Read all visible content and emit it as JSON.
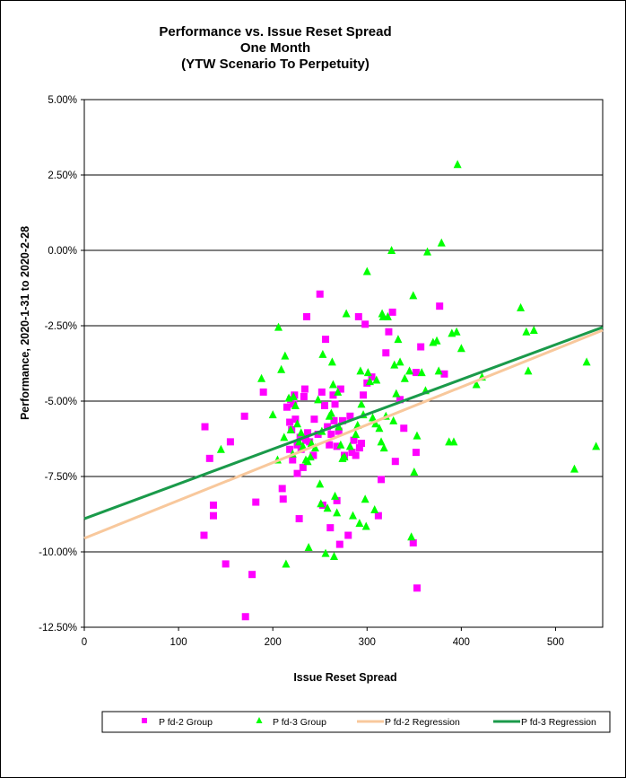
{
  "chart_data": {
    "type": "scatter",
    "title_lines": [
      "Performance vs. Issue Reset Spread",
      "One Month",
      "(YTW Scenario To Perpetuity)"
    ],
    "xlabel": "Issue  Reset Spread",
    "ylabel": "Performance, 2020-1-31  to  2020-2-28",
    "xlim": [
      0,
      550
    ],
    "ylim": [
      -12.5,
      5.0
    ],
    "x_ticks": [
      0,
      100,
      200,
      300,
      400,
      500
    ],
    "x_tick_labels": [
      "0",
      "100",
      "200",
      "300",
      "400",
      "500"
    ],
    "y_ticks": [
      5.0,
      2.5,
      0.0,
      -2.5,
      -5.0,
      -7.5,
      -10.0,
      -12.5
    ],
    "y_tick_labels": [
      "5.00%",
      "2.50%",
      "0.00%",
      "-2.50%",
      "-5.00%",
      "-7.50%",
      "-10.00%",
      "-12.50%"
    ],
    "gridlines": "horizontal",
    "legend_position": "bottom",
    "series": [
      {
        "name": "P fd-2 Group",
        "marker": "square",
        "color": "#ff00ff",
        "points": [
          [
            128,
            -5.85
          ],
          [
            133,
            -6.9
          ],
          [
            137,
            -8.45
          ],
          [
            137,
            -8.8
          ],
          [
            127,
            -9.45
          ],
          [
            150,
            -10.4
          ],
          [
            155,
            -6.35
          ],
          [
            170,
            -5.5
          ],
          [
            171,
            -12.15
          ],
          [
            178,
            -10.75
          ],
          [
            182,
            -8.35
          ],
          [
            190,
            -4.7
          ],
          [
            210,
            -7.9
          ],
          [
            211,
            -8.25
          ],
          [
            215,
            -5.2
          ],
          [
            218,
            -6.6
          ],
          [
            218,
            -5.7
          ],
          [
            219,
            -4.95
          ],
          [
            220,
            -5.95
          ],
          [
            221,
            -6.95
          ],
          [
            222,
            -5.1
          ],
          [
            223,
            -4.8
          ],
          [
            224,
            -5.6
          ],
          [
            226,
            -6.45
          ],
          [
            226,
            -7.4
          ],
          [
            228,
            -8.9
          ],
          [
            229,
            -6.2
          ],
          [
            230,
            -6.6
          ],
          [
            232,
            -7.2
          ],
          [
            233,
            -4.85
          ],
          [
            234,
            -4.6
          ],
          [
            235,
            -6.3
          ],
          [
            236,
            -2.2
          ],
          [
            237,
            -6.05
          ],
          [
            239,
            -6.35
          ],
          [
            243,
            -6.8
          ],
          [
            244,
            -5.6
          ],
          [
            248,
            -6.1
          ],
          [
            250,
            -1.45
          ],
          [
            252,
            -4.7
          ],
          [
            253,
            -8.45
          ],
          [
            255,
            -5.15
          ],
          [
            256,
            -2.95
          ],
          [
            258,
            -5.85
          ],
          [
            260,
            -6.45
          ],
          [
            261,
            -9.2
          ],
          [
            262,
            -6.1
          ],
          [
            264,
            -4.8
          ],
          [
            265,
            -5.65
          ],
          [
            266,
            -5.1
          ],
          [
            268,
            -8.3
          ],
          [
            268,
            -6.5
          ],
          [
            270,
            -6.0
          ],
          [
            271,
            -9.75
          ],
          [
            272,
            -4.6
          ],
          [
            274,
            -5.65
          ],
          [
            276,
            -6.8
          ],
          [
            280,
            -9.45
          ],
          [
            282,
            -5.5
          ],
          [
            284,
            -6.7
          ],
          [
            286,
            -6.3
          ],
          [
            288,
            -6.8
          ],
          [
            291,
            -2.2
          ],
          [
            292,
            -6.55
          ],
          [
            294,
            -6.4
          ],
          [
            296,
            -4.8
          ],
          [
            298,
            -2.45
          ],
          [
            300,
            -4.4
          ],
          [
            305,
            -4.2
          ],
          [
            312,
            -8.8
          ],
          [
            315,
            -7.6
          ],
          [
            320,
            -3.4
          ],
          [
            323,
            -2.7
          ],
          [
            327,
            -2.05
          ],
          [
            330,
            -7.0
          ],
          [
            335,
            -4.95
          ],
          [
            339,
            -5.9
          ],
          [
            349,
            -9.7
          ],
          [
            352,
            -6.7
          ],
          [
            353,
            -11.2
          ],
          [
            352,
            -4.05
          ],
          [
            357,
            -3.2
          ],
          [
            377,
            -1.85
          ],
          [
            382,
            -4.1
          ]
        ]
      },
      {
        "name": "P fd-3 Group",
        "marker": "triangle",
        "color": "#00ff00",
        "points": [
          [
            145,
            -6.6
          ],
          [
            188,
            -4.25
          ],
          [
            200,
            -5.45
          ],
          [
            205,
            -6.95
          ],
          [
            206,
            -2.55
          ],
          [
            209,
            -3.95
          ],
          [
            212,
            -6.2
          ],
          [
            213,
            -3.5
          ],
          [
            214,
            -10.4
          ],
          [
            217,
            -4.9
          ],
          [
            219,
            -5.95
          ],
          [
            221,
            -6.75
          ],
          [
            222,
            -4.85
          ],
          [
            224,
            -5.15
          ],
          [
            226,
            -5.75
          ],
          [
            228,
            -6.35
          ],
          [
            230,
            -6.05
          ],
          [
            232,
            -6.5
          ],
          [
            235,
            -6.95
          ],
          [
            237,
            -7.0
          ],
          [
            238,
            -9.85
          ],
          [
            240,
            -6.85
          ],
          [
            241,
            -6.4
          ],
          [
            245,
            -6.55
          ],
          [
            248,
            -4.95
          ],
          [
            250,
            -7.75
          ],
          [
            251,
            -8.4
          ],
          [
            252,
            -6.0
          ],
          [
            253,
            -3.45
          ],
          [
            256,
            -10.05
          ],
          [
            258,
            -8.55
          ],
          [
            260,
            -5.5
          ],
          [
            262,
            -5.4
          ],
          [
            263,
            -3.7
          ],
          [
            264,
            -4.45
          ],
          [
            265,
            -10.15
          ],
          [
            266,
            -8.15
          ],
          [
            268,
            -8.7
          ],
          [
            269,
            -4.7
          ],
          [
            270,
            -5.85
          ],
          [
            272,
            -6.45
          ],
          [
            274,
            -6.9
          ],
          [
            276,
            -6.85
          ],
          [
            278,
            -2.1
          ],
          [
            282,
            -6.5
          ],
          [
            285,
            -8.8
          ],
          [
            288,
            -6.1
          ],
          [
            290,
            -5.8
          ],
          [
            292,
            -9.05
          ],
          [
            293,
            -4.0
          ],
          [
            294,
            -5.1
          ],
          [
            296,
            -5.45
          ],
          [
            298,
            -8.25
          ],
          [
            299,
            -9.15
          ],
          [
            300,
            -0.7
          ],
          [
            301,
            -4.05
          ],
          [
            303,
            -4.35
          ],
          [
            306,
            -5.55
          ],
          [
            308,
            -8.6
          ],
          [
            309,
            -5.75
          ],
          [
            310,
            -4.3
          ],
          [
            313,
            -5.9
          ],
          [
            315,
            -6.35
          ],
          [
            316,
            -2.1
          ],
          [
            317,
            -2.2
          ],
          [
            318,
            -6.55
          ],
          [
            320,
            -5.5
          ],
          [
            322,
            -2.2
          ],
          [
            326,
            0.0
          ],
          [
            328,
            -5.65
          ],
          [
            329,
            -3.8
          ],
          [
            331,
            -4.75
          ],
          [
            333,
            -2.95
          ],
          [
            335,
            -3.7
          ],
          [
            340,
            -4.25
          ],
          [
            345,
            -4.0
          ],
          [
            347,
            -9.5
          ],
          [
            349,
            -1.5
          ],
          [
            350,
            -7.35
          ],
          [
            353,
            -6.15
          ],
          [
            358,
            -4.05
          ],
          [
            362,
            -4.65
          ],
          [
            364,
            -0.05
          ],
          [
            370,
            -3.05
          ],
          [
            374,
            -3.0
          ],
          [
            376,
            -4.0
          ],
          [
            379,
            0.25
          ],
          [
            387,
            -6.35
          ],
          [
            390,
            -2.75
          ],
          [
            392,
            -6.35
          ],
          [
            395,
            -2.7
          ],
          [
            396,
            2.85
          ],
          [
            400,
            -3.25
          ],
          [
            416,
            -4.45
          ],
          [
            422,
            -4.2
          ],
          [
            463,
            -1.9
          ],
          [
            469,
            -2.7
          ],
          [
            471,
            -4.0
          ],
          [
            477,
            -2.65
          ],
          [
            520,
            -7.25
          ],
          [
            533,
            -3.7
          ],
          [
            543,
            -6.5
          ]
        ]
      },
      {
        "name": "P fd-2 Regression",
        "marker": "line",
        "color": "#f8c89c",
        "line": [
          [
            0,
            -9.55
          ],
          [
            550,
            -2.65
          ]
        ]
      },
      {
        "name": "P fd-3 Regression",
        "marker": "line",
        "color": "#1a9a4a",
        "line": [
          [
            0,
            -8.9
          ],
          [
            550,
            -2.55
          ]
        ]
      }
    ]
  }
}
